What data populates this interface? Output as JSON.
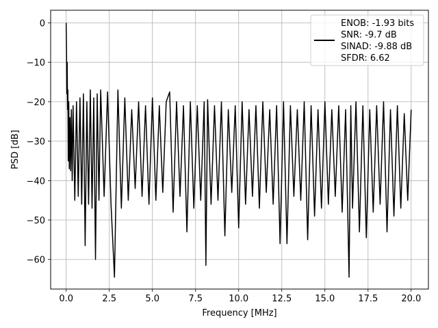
{
  "chart_data": {
    "type": "line",
    "xlabel": "Frequency [MHz]",
    "ylabel": "PSD [dB]",
    "xlim": [
      -0.9,
      21.0
    ],
    "ylim": [
      -67.5,
      3.2
    ],
    "xticks": [
      0.0,
      2.5,
      5.0,
      7.5,
      10.0,
      12.5,
      15.0,
      17.5,
      20.0
    ],
    "xtick_labels": [
      "0.0",
      "2.5",
      "5.0",
      "7.5",
      "10.0",
      "12.5",
      "15.0",
      "17.5",
      "20.0"
    ],
    "yticks": [
      0,
      -10,
      -20,
      -30,
      -40,
      -50,
      -60
    ],
    "ytick_labels": [
      "0",
      "−10",
      "−20",
      "−30",
      "−40",
      "−50",
      "−60"
    ],
    "grid": true,
    "legend_position": "upper right",
    "series": [
      {
        "color": "#000000",
        "x": [
          0.0,
          0.02,
          0.04,
          0.06,
          0.08,
          0.1,
          0.12,
          0.15,
          0.18,
          0.22,
          0.26,
          0.3,
          0.35,
          0.4,
          0.5,
          0.6,
          0.7,
          0.8,
          0.9,
          1.0,
          1.1,
          1.2,
          1.3,
          1.4,
          1.5,
          1.6,
          1.7,
          1.8,
          1.9,
          2.0,
          2.2,
          2.4,
          2.6,
          2.8,
          3.0,
          3.2,
          3.4,
          3.6,
          3.8,
          4.0,
          4.2,
          4.4,
          4.6,
          4.8,
          5.0,
          5.2,
          5.4,
          5.6,
          5.8,
          6.0,
          6.2,
          6.4,
          6.6,
          6.8,
          7.0,
          7.2,
          7.4,
          7.6,
          7.8,
          8.0,
          8.1,
          8.2,
          8.4,
          8.6,
          8.8,
          9.0,
          9.2,
          9.4,
          9.6,
          9.8,
          10.0,
          10.2,
          10.4,
          10.6,
          10.8,
          11.0,
          11.2,
          11.4,
          11.6,
          11.8,
          12.0,
          12.2,
          12.4,
          12.6,
          12.8,
          13.0,
          13.2,
          13.4,
          13.6,
          13.8,
          14.0,
          14.2,
          14.4,
          14.6,
          14.8,
          15.0,
          15.2,
          15.4,
          15.6,
          15.8,
          16.0,
          16.2,
          16.4,
          16.5,
          16.6,
          16.8,
          17.0,
          17.2,
          17.4,
          17.6,
          17.8,
          18.0,
          18.2,
          18.4,
          18.6,
          18.8,
          19.0,
          19.2,
          19.4,
          19.6,
          19.8,
          20.0
        ],
        "y": [
          0.0,
          -7.0,
          -18.0,
          -10.0,
          -22.0,
          -17.0,
          -35.0,
          -20.0,
          -37.0,
          -24.0,
          -37.5,
          -22.0,
          -40.0,
          -21.0,
          -45.0,
          -20.0,
          -44.0,
          -19.0,
          -46.0,
          -18.0,
          -56.5,
          -20.0,
          -46.0,
          -17.0,
          -47.0,
          -19.0,
          -60.0,
          -18.0,
          -45.0,
          -17.0,
          -44.0,
          -17.5,
          -46.0,
          -64.5,
          -17.0,
          -47.0,
          -19.0,
          -45.0,
          -22.0,
          -42.0,
          -20.0,
          -44.0,
          -21.0,
          -46.0,
          -19.0,
          -45.0,
          -21.0,
          -43.0,
          -20.0,
          -17.5,
          -48.0,
          -20.0,
          -44.0,
          -21.0,
          -53.0,
          -20.0,
          -47.0,
          -21.0,
          -45.0,
          -20.0,
          -61.5,
          -19.5,
          -46.0,
          -21.0,
          -45.0,
          -20.0,
          -54.0,
          -22.0,
          -43.0,
          -21.0,
          -52.0,
          -20.0,
          -46.0,
          -22.0,
          -44.0,
          -21.0,
          -47.0,
          -20.0,
          -43.0,
          -22.0,
          -46.0,
          -21.0,
          -56.0,
          -20.0,
          -56.0,
          -21.0,
          -44.0,
          -22.0,
          -45.0,
          -20.0,
          -55.0,
          -21.0,
          -49.0,
          -22.0,
          -47.0,
          -20.0,
          -46.0,
          -22.0,
          -44.0,
          -21.0,
          -48.0,
          -22.0,
          -64.5,
          -21.0,
          -47.0,
          -20.0,
          -53.0,
          -21.0,
          -54.5,
          -22.0,
          -48.0,
          -21.0,
          -46.0,
          -20.0,
          -53.0,
          -22.0,
          -49.0,
          -21.0,
          -47.0,
          -23.0,
          -45.0,
          -22.0
        ]
      }
    ],
    "legend": {
      "lines": [
        "ENOB: -1.93 bits",
        "SNR: -9.7 dB",
        "SINAD: -9.88 dB",
        "SFDR: 6.62"
      ]
    }
  }
}
